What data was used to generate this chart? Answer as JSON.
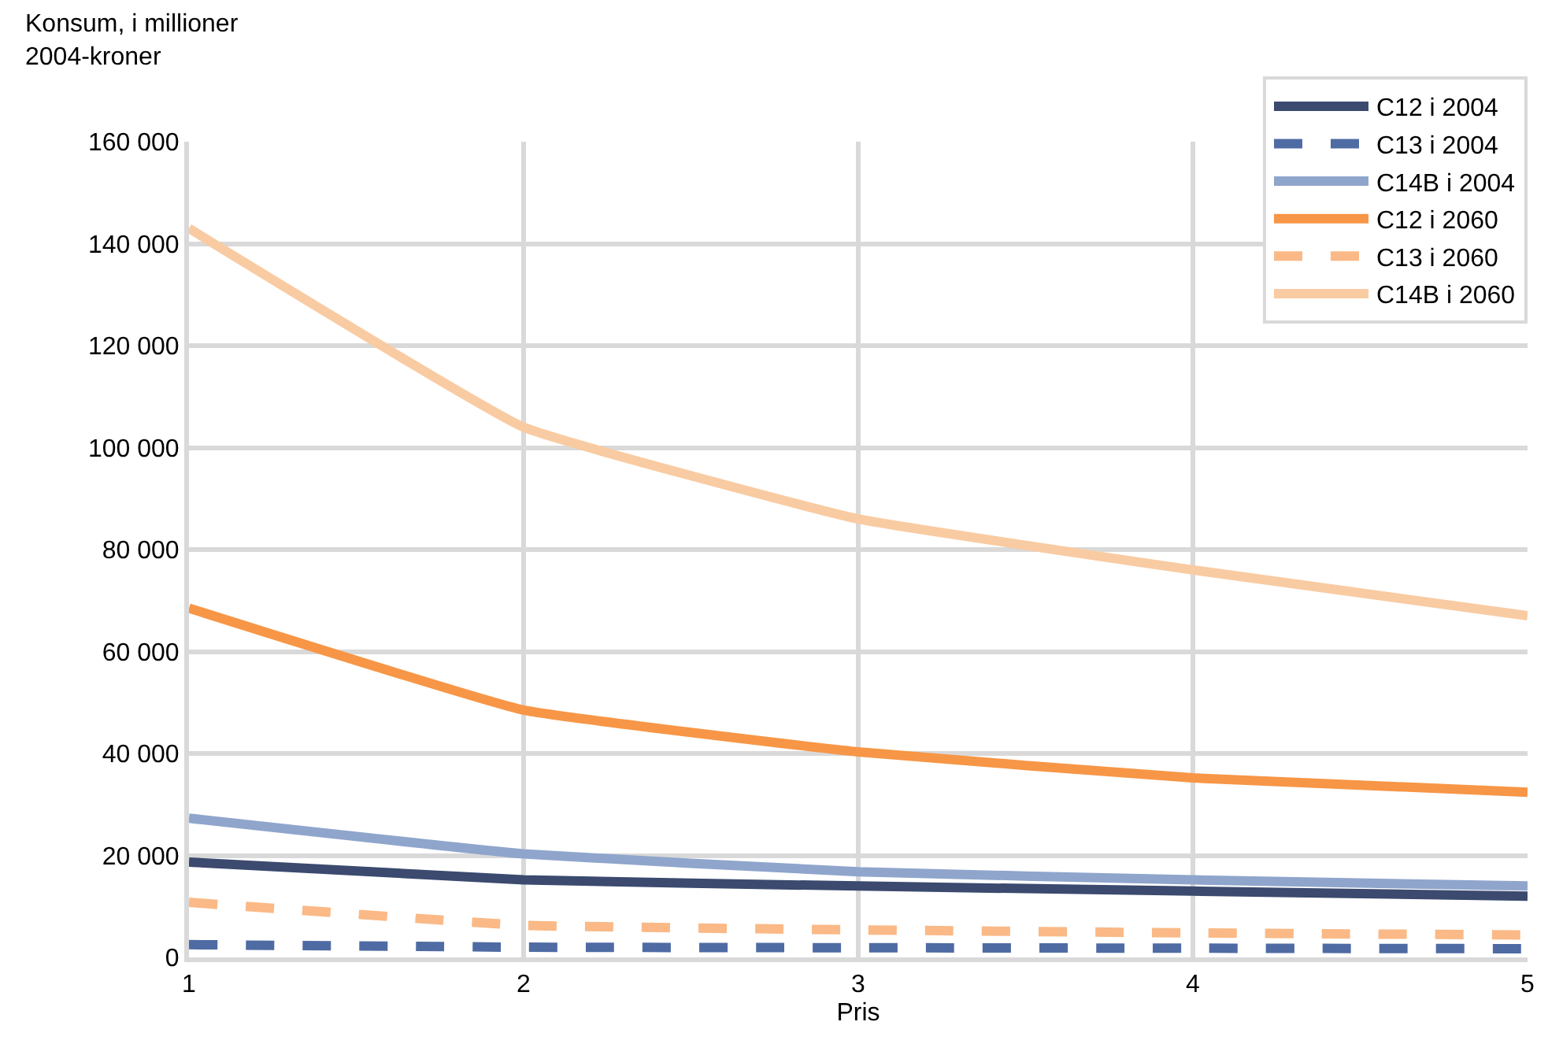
{
  "chart_data": {
    "type": "line",
    "xlabel": "Pris",
    "ylabel": "Konsum, i millioner\n2004-kroner",
    "x": [
      1,
      2,
      3,
      4,
      5
    ],
    "series": [
      {
        "name": "C12 i 2004",
        "color": "#3b4a6e",
        "line_style": "solid",
        "values": [
          18700,
          15200,
          14000,
          13000,
          12000
        ]
      },
      {
        "name": "C13 i 2004",
        "color": "#4f6ba3",
        "line_style": "dashed",
        "values": [
          2500,
          2000,
          1900,
          1800,
          1700
        ]
      },
      {
        "name": "C14B i 2004",
        "color": "#8fa5cc",
        "line_style": "solid",
        "values": [
          27300,
          20300,
          16800,
          15200,
          14000
        ]
      },
      {
        "name": "C12 i 2060",
        "color": "#f79646",
        "line_style": "solid",
        "values": [
          68500,
          48500,
          40300,
          35200,
          32400
        ]
      },
      {
        "name": "C13 i 2060",
        "color": "#fab986",
        "line_style": "dashed",
        "values": [
          10800,
          6300,
          5400,
          4800,
          4400
        ]
      },
      {
        "name": "C14B i 2060",
        "color": "#f9cba2",
        "line_style": "solid",
        "values": [
          143000,
          104000,
          86000,
          76000,
          67000
        ]
      }
    ],
    "xlim": [
      1,
      5
    ],
    "xticks": [
      1,
      2,
      3,
      4,
      5
    ],
    "ylim": [
      0,
      160000
    ],
    "yticks": [
      0,
      {
        "value": 20000,
        "label": "20 000"
      },
      {
        "value": 40000,
        "label": "40 000"
      },
      {
        "value": 60000,
        "label": "60 000"
      },
      {
        "value": 80000,
        "label": "80 000"
      },
      {
        "value": 100000,
        "label": "100 000"
      },
      {
        "value": 120000,
        "label": "120 000"
      },
      {
        "value": 140000,
        "label": "140 000"
      },
      {
        "value": 160000,
        "label": "160 000"
      }
    ],
    "grid": true,
    "legend": "top right"
  }
}
